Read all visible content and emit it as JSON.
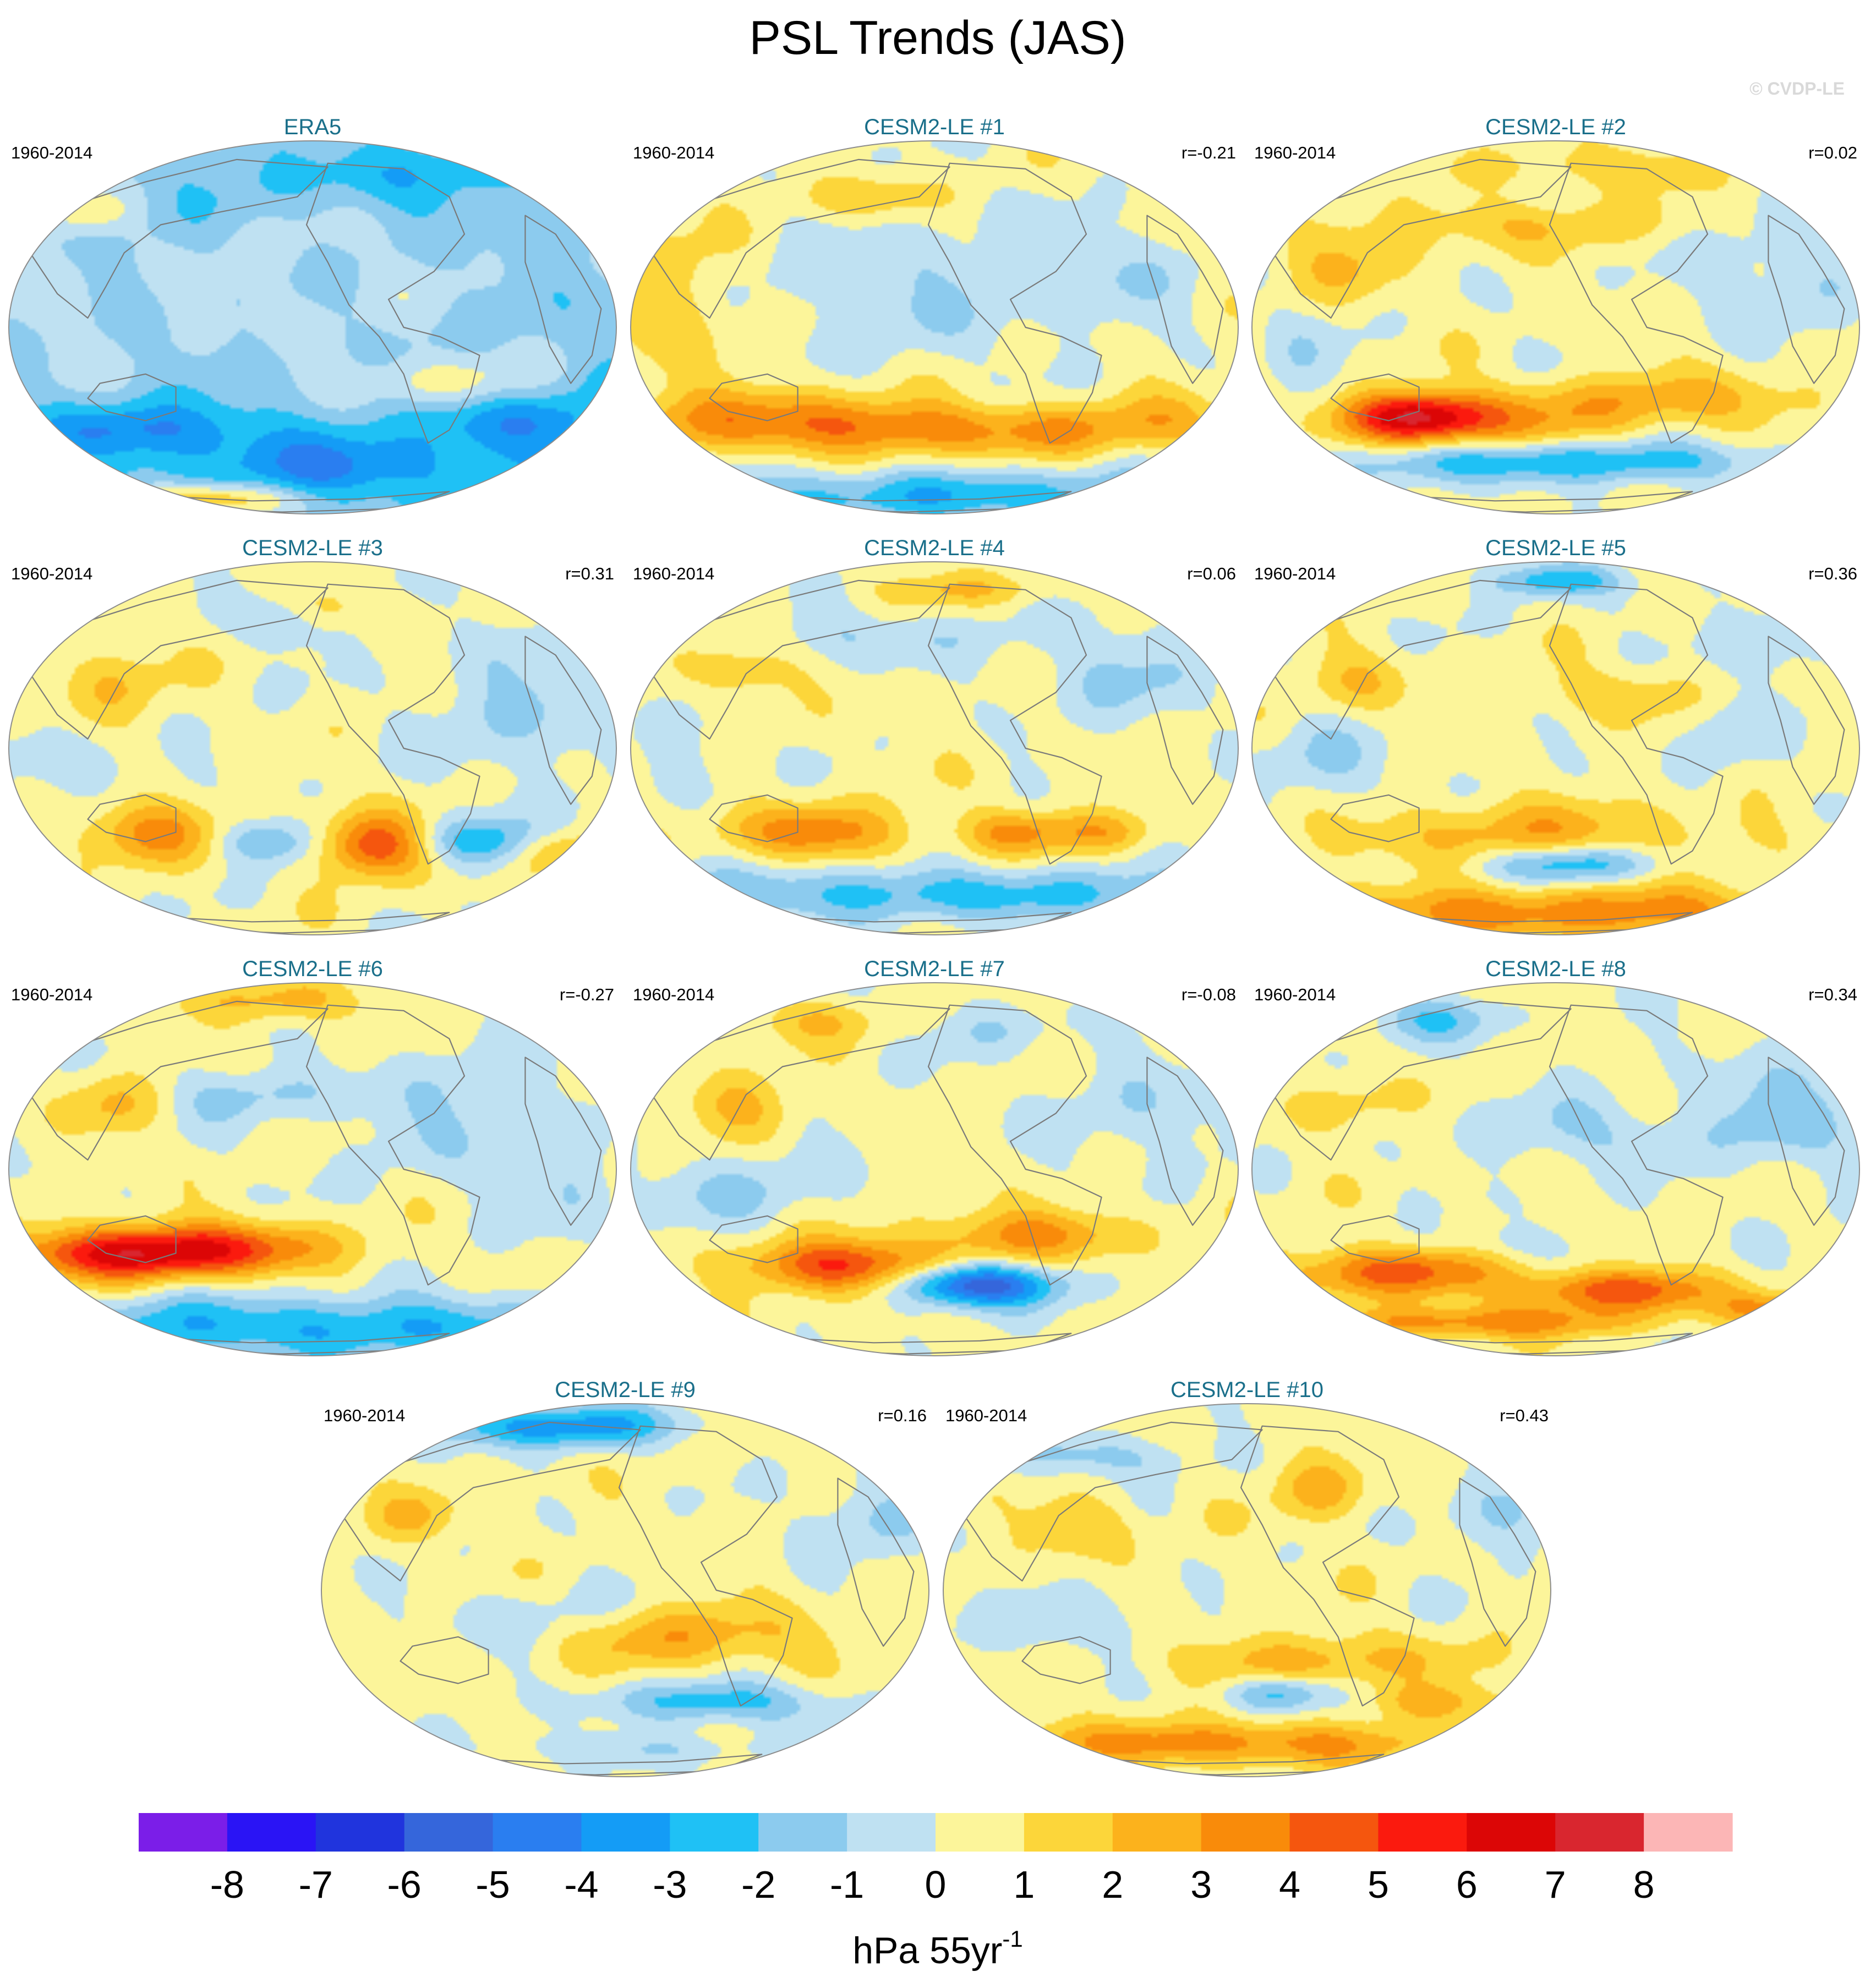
{
  "title": "PSL Trends (JAS)",
  "watermark": "© CVDP-LE",
  "colors": {
    "panel_title": "#1a6f8a",
    "coastline": "#7a7a7a",
    "outline": "#8c8c8c",
    "text": "#000000",
    "watermark": "#d9d9d9"
  },
  "chart_data": {
    "type": "heatmap",
    "variable": "PSL",
    "season": "JAS",
    "projection": "global equal-area ellipse",
    "panels": [
      {
        "title": "ERA5",
        "period": "1960-2014",
        "r": "",
        "pattern": "era5",
        "seed": 11
      },
      {
        "title": "CESM2-LE #1",
        "period": "1960-2014",
        "r": "r=-0.21",
        "pattern": "m1",
        "seed": 23
      },
      {
        "title": "CESM2-LE #2",
        "period": "1960-2014",
        "r": "r=0.02",
        "pattern": "m2",
        "seed": 37
      },
      {
        "title": "CESM2-LE #3",
        "period": "1960-2014",
        "r": "r=0.31",
        "pattern": "m3",
        "seed": 41
      },
      {
        "title": "CESM2-LE #4",
        "period": "1960-2014",
        "r": "r=0.06",
        "pattern": "m4",
        "seed": 53
      },
      {
        "title": "CESM2-LE #5",
        "period": "1960-2014",
        "r": "r=0.36",
        "pattern": "m5",
        "seed": 67
      },
      {
        "title": "CESM2-LE #6",
        "period": "1960-2014",
        "r": "r=-0.27",
        "pattern": "m6",
        "seed": 71
      },
      {
        "title": "CESM2-LE #7",
        "period": "1960-2014",
        "r": "r=-0.08",
        "pattern": "m7",
        "seed": 83
      },
      {
        "title": "CESM2-LE #8",
        "period": "1960-2014",
        "r": "r=0.34",
        "pattern": "m8",
        "seed": 97
      },
      {
        "title": "CESM2-LE #9",
        "period": "1960-2014",
        "r": "r=0.16",
        "pattern": "m9",
        "seed": 101
      },
      {
        "title": "CESM2-LE #10",
        "period": "1960-2014",
        "r": "r=0.43",
        "pattern": "m10",
        "seed": 113
      }
    ],
    "colorbar": {
      "levels": [
        "-8",
        "-7",
        "-6",
        "-5",
        "-4",
        "-3",
        "-2",
        "-1",
        "0",
        "1",
        "2",
        "3",
        "4",
        "5",
        "6",
        "7",
        "8"
      ],
      "colors": [
        "#7b1ee8",
        "#2a14f5",
        "#2034dd",
        "#3566db",
        "#2a7ef0",
        "#149cf6",
        "#1fc1f5",
        "#8ccbee",
        "#bfe1f2",
        "#fcf59a",
        "#fcd63a",
        "#fcb21c",
        "#f98b0a",
        "#f5560e",
        "#fb1a0e",
        "#dc0606",
        "#d9262f",
        "#fcb6b6"
      ],
      "units_label": "hPa 55yr",
      "units_superscript": "-1"
    }
  }
}
